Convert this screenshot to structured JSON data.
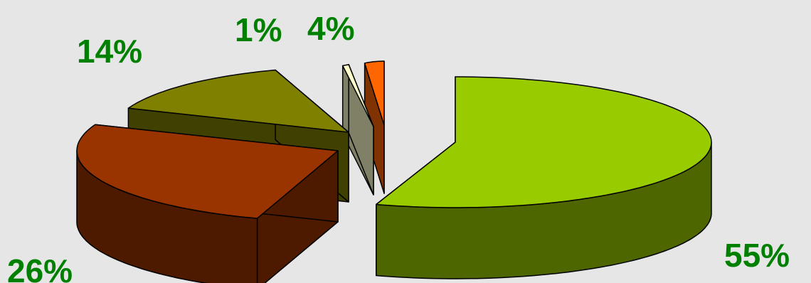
{
  "chart_data": {
    "type": "pie",
    "title": "",
    "style": "3d-exploded",
    "slices": [
      {
        "value": 55,
        "label": "55%",
        "top_color": "#99CC00",
        "side_color": "#4D6600"
      },
      {
        "value": 26,
        "label": "26%",
        "top_color": "#993300",
        "side_color": "#4D1A00"
      },
      {
        "value": 14,
        "label": "14%",
        "top_color": "#808000",
        "side_color": "#404000"
      },
      {
        "value": 1,
        "label": "1%",
        "top_color": "#FFFFCC",
        "side_color": "#808066"
      },
      {
        "value": 4,
        "label": "4%",
        "top_color": "#FF6600",
        "side_color": "#803300"
      }
    ],
    "label_color": "#008000",
    "background": "#E6E6E6"
  }
}
